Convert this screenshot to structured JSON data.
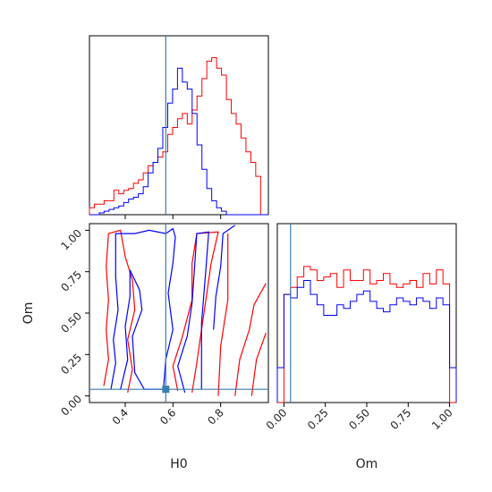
{
  "chart_data": {
    "type": "corner",
    "colors": {
      "series_a": "#ff0000",
      "series_b": "#0000ff",
      "truth": "#3a7fb0"
    },
    "truth": {
      "H0": 0.57,
      "Om": 0.04
    },
    "parameters": [
      "H0",
      "Om"
    ],
    "axis_labels": {
      "H0": "H0",
      "Om": "Om"
    },
    "h0_hist": {
      "xlim": [
        0.25,
        1.0
      ],
      "bin_edges": [
        0.25,
        0.2705,
        0.291,
        0.3115,
        0.332,
        0.3525,
        0.373,
        0.3935,
        0.414,
        0.4345,
        0.455,
        0.4755,
        0.496,
        0.5165,
        0.537,
        0.5575,
        0.578,
        0.5985,
        0.619,
        0.6395,
        0.66,
        0.6805,
        0.701,
        0.7215,
        0.742,
        0.7625,
        0.783,
        0.8035,
        0.824,
        0.8445,
        0.865,
        0.8855,
        0.906,
        0.9265,
        0.947,
        0.9675,
        1.0
      ],
      "series": [
        {
          "name": "",
          "color": "#ff0000",
          "counts": [
            0.04,
            0.06,
            0.06,
            0.08,
            0.08,
            0.14,
            0.12,
            0.14,
            0.15,
            0.18,
            0.2,
            0.24,
            0.28,
            0.3,
            0.33,
            0.36,
            0.46,
            0.5,
            0.55,
            0.58,
            0.52,
            0.6,
            0.68,
            0.78,
            0.88,
            0.9,
            0.84,
            0.8,
            0.66,
            0.58,
            0.52,
            0.44,
            0.36,
            0.3,
            0.22,
            0.0
          ]
        },
        {
          "name": "",
          "color": "#0000ff",
          "counts": [
            0.0,
            0.0,
            0.01,
            0.02,
            0.03,
            0.04,
            0.05,
            0.07,
            0.09,
            0.1,
            0.12,
            0.16,
            0.24,
            0.3,
            0.38,
            0.5,
            0.64,
            0.72,
            0.84,
            0.76,
            0.72,
            0.58,
            0.4,
            0.26,
            0.15,
            0.08,
            0.04,
            0.02,
            0.0,
            0.0,
            0.0,
            0.0,
            0.0,
            0.0,
            0.0,
            0.0
          ]
        }
      ]
    },
    "om_hist": {
      "xlim": [
        -0.04,
        1.04
      ],
      "bin_edges": [
        -0.04,
        0.0,
        0.04,
        0.08,
        0.12,
        0.16,
        0.2,
        0.24,
        0.28,
        0.32,
        0.36,
        0.4,
        0.44,
        0.48,
        0.52,
        0.56,
        0.6,
        0.64,
        0.68,
        0.72,
        0.76,
        0.8,
        0.84,
        0.88,
        0.92,
        0.96,
        1.0,
        1.04
      ],
      "xticks": [
        0.0,
        0.25,
        0.5,
        0.75,
        1.0
      ],
      "xtick_labels": [
        "0.00",
        "0.25",
        "0.50",
        "0.75",
        "1.00"
      ],
      "series": [
        {
          "name": "",
          "color": "#ff0000",
          "counts": [
            0.0,
            0.62,
            0.66,
            0.72,
            0.78,
            0.76,
            0.7,
            0.72,
            0.74,
            0.66,
            0.76,
            0.7,
            0.7,
            0.76,
            0.68,
            0.7,
            0.74,
            0.68,
            0.66,
            0.68,
            0.7,
            0.66,
            0.74,
            0.68,
            0.76,
            0.68,
            0.0
          ]
        },
        {
          "name": "",
          "color": "#0000ff",
          "counts": [
            0.2,
            0.62,
            0.6,
            0.66,
            0.7,
            0.62,
            0.56,
            0.5,
            0.5,
            0.56,
            0.54,
            0.58,
            0.62,
            0.64,
            0.58,
            0.54,
            0.52,
            0.56,
            0.6,
            0.58,
            0.56,
            0.6,
            0.58,
            0.54,
            0.6,
            0.56,
            0.2
          ]
        }
      ]
    },
    "scatter_2d": {
      "xlim": [
        0.25,
        1.0
      ],
      "ylim": [
        -0.04,
        1.04
      ],
      "xticks": [
        0.4,
        0.6,
        0.8
      ],
      "xtick_labels": [
        "0.4",
        "0.6",
        "0.8"
      ],
      "yticks": [
        0.0,
        0.25,
        0.5,
        0.75,
        1.0
      ],
      "ytick_labels": [
        "0.00",
        "0.25",
        "0.50",
        "0.75",
        "1.00"
      ],
      "contours": [
        {
          "color": "#ff0000",
          "points": [
            [
              0.31,
              0.06
            ],
            [
              0.33,
              0.22
            ],
            [
              0.32,
              0.4
            ],
            [
              0.33,
              0.58
            ],
            [
              0.32,
              0.78
            ],
            [
              0.33,
              0.98
            ],
            [
              0.38,
              1.0
            ],
            [
              0.4,
              0.84
            ],
            [
              0.43,
              0.7
            ],
            [
              0.44,
              0.52
            ],
            [
              0.41,
              0.34
            ],
            [
              0.43,
              0.16
            ],
            [
              0.41,
              0.02
            ]
          ]
        },
        {
          "color": "#ff0000",
          "points": [
            [
              0.62,
              0.03
            ],
            [
              0.6,
              0.18
            ],
            [
              0.64,
              0.36
            ],
            [
              0.68,
              0.58
            ],
            [
              0.68,
              0.8
            ],
            [
              0.7,
              0.98
            ],
            [
              0.79,
              0.99
            ],
            [
              0.76,
              0.8
            ],
            [
              0.74,
              0.6
            ],
            [
              0.72,
              0.4
            ],
            [
              0.7,
              0.2
            ],
            [
              0.68,
              0.02
            ]
          ]
        },
        {
          "color": "#ff0000",
          "points": [
            [
              0.79,
              0.0
            ],
            [
              0.8,
              0.3
            ],
            [
              0.83,
              0.58
            ],
            [
              0.83,
              0.98
            ]
          ]
        },
        {
          "color": "#ff0000",
          "points": [
            [
              0.86,
              0.0
            ],
            [
              0.88,
              0.22
            ],
            [
              0.92,
              0.4
            ],
            [
              0.94,
              0.55
            ],
            [
              0.99,
              0.68
            ]
          ]
        },
        {
          "color": "#ff0000",
          "points": [
            [
              0.93,
              0.0
            ],
            [
              0.95,
              0.22
            ],
            [
              0.99,
              0.38
            ]
          ]
        },
        {
          "color": "#0000ff",
          "points": [
            [
              0.34,
              0.04
            ],
            [
              0.36,
              0.2
            ],
            [
              0.35,
              0.34
            ],
            [
              0.37,
              0.52
            ],
            [
              0.36,
              0.72
            ],
            [
              0.36,
              0.98
            ],
            [
              0.44,
              0.98
            ],
            [
              0.5,
              1.0
            ],
            [
              0.57,
              0.98
            ],
            [
              0.6,
              1.01
            ],
            [
              0.61,
              0.96
            ],
            [
              0.6,
              0.8
            ],
            [
              0.58,
              0.62
            ],
            [
              0.6,
              0.4
            ],
            [
              0.57,
              0.22
            ],
            [
              0.56,
              0.04
            ],
            [
              0.48,
              0.04
            ],
            [
              0.44,
              0.14
            ],
            [
              0.43,
              0.36
            ],
            [
              0.47,
              0.52
            ],
            [
              0.46,
              0.64
            ],
            [
              0.42,
              0.76
            ],
            [
              0.42,
              0.6
            ],
            [
              0.4,
              0.42
            ],
            [
              0.41,
              0.22
            ],
            [
              0.38,
              0.04
            ]
          ]
        },
        {
          "color": "#0000ff",
          "points": [
            [
              0.65,
              0.02
            ],
            [
              0.62,
              0.18
            ],
            [
              0.66,
              0.36
            ],
            [
              0.68,
              0.56
            ],
            [
              0.69,
              0.76
            ],
            [
              0.7,
              0.98
            ],
            [
              0.75,
              0.99
            ],
            [
              0.74,
              0.8
            ],
            [
              0.73,
              0.62
            ],
            [
              0.72,
              0.44
            ],
            [
              0.72,
              0.24
            ],
            [
              0.72,
              0.04
            ]
          ]
        },
        {
          "color": "#0000ff",
          "points": [
            [
              0.77,
              0.4
            ],
            [
              0.78,
              0.6
            ],
            [
              0.8,
              0.78
            ],
            [
              0.81,
              0.98
            ],
            [
              0.86,
              1.03
            ]
          ]
        }
      ]
    }
  }
}
